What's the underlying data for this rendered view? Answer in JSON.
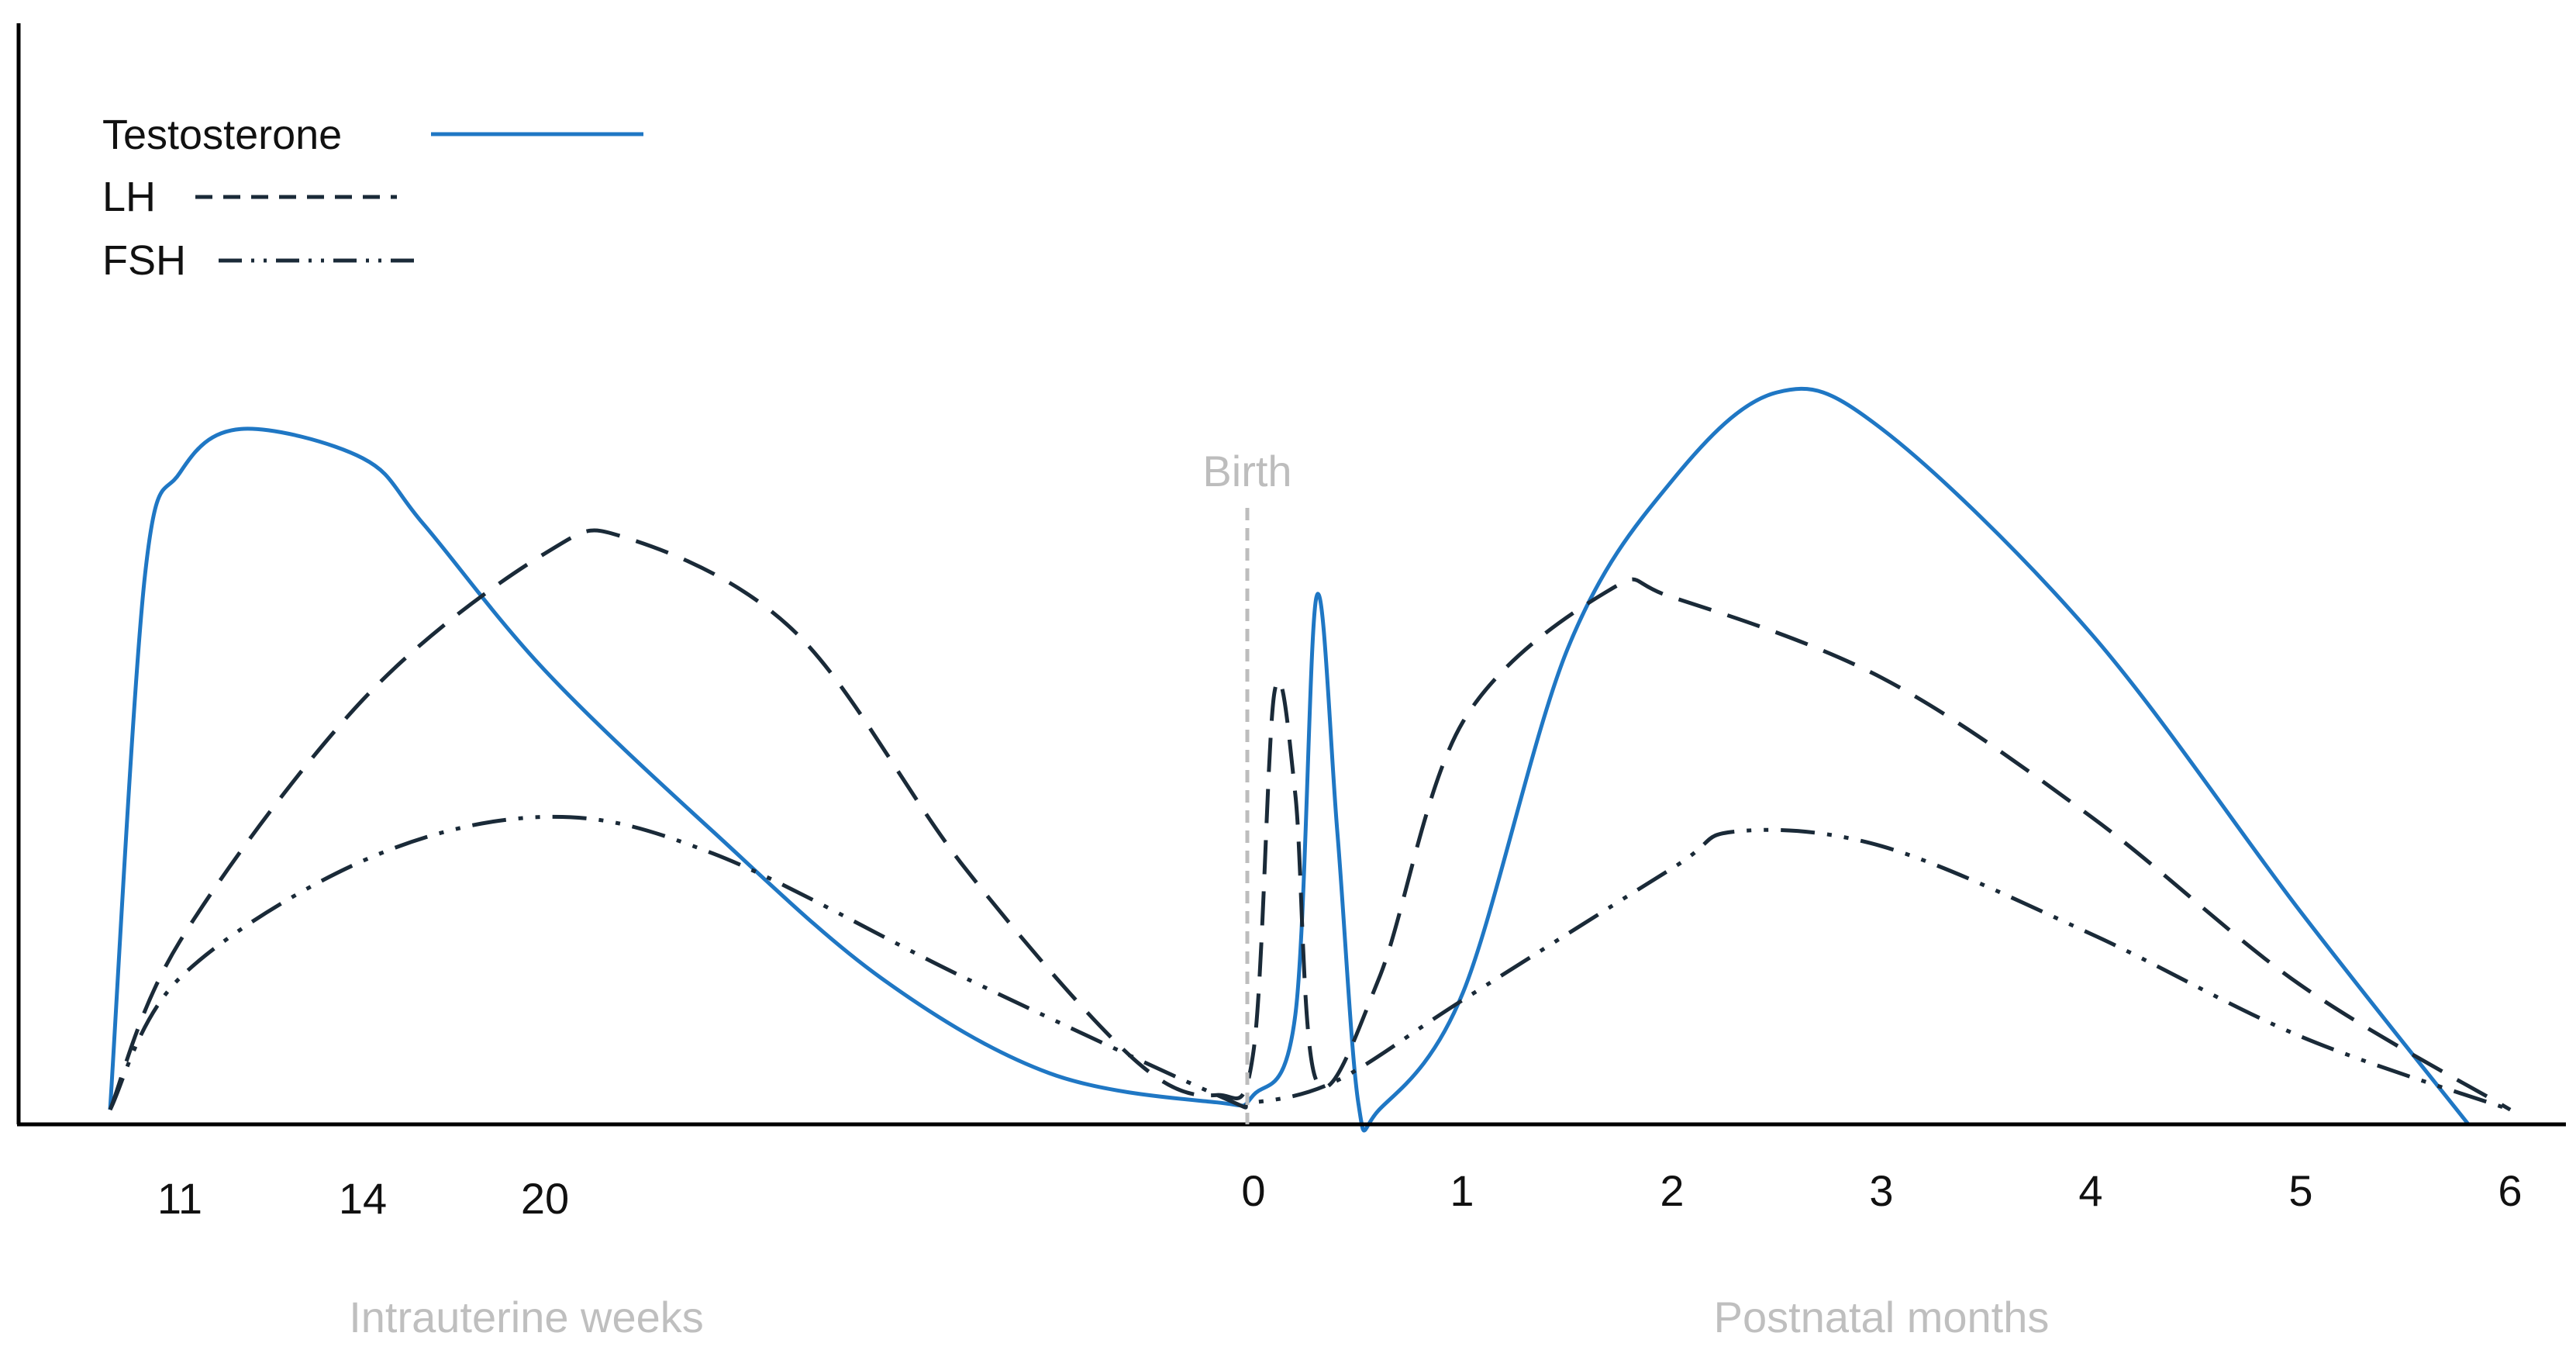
{
  "chart_data": {
    "type": "line",
    "title": "",
    "y_axis": {
      "label": "",
      "ticks": [],
      "ylim": [
        0,
        100
      ]
    },
    "x_axis": {
      "segments": [
        {
          "label": "Intrauterine weeks",
          "ticks": [
            "11",
            "14",
            "20"
          ]
        },
        {
          "label": "Postnatal months",
          "ticks": [
            "0",
            "1",
            "2",
            "3",
            "4",
            "5",
            "6"
          ]
        }
      ]
    },
    "legend": {
      "placement": "top-left",
      "entries": [
        {
          "name": "Testosterone",
          "style": "solid",
          "color": "#1f77c4"
        },
        {
          "name": "LH",
          "style": "dashed",
          "color": "#1a2a38"
        },
        {
          "name": "FSH",
          "style": "dash-dot-dot",
          "color": "#1a2a38"
        }
      ]
    },
    "annotation": {
      "text": "Birth",
      "at_x": "0"
    },
    "series": [
      {
        "name": "Testosterone",
        "color": "#1f77c4",
        "points": [
          {
            "x": "10",
            "y": 2
          },
          {
            "x": "10.5",
            "y": 75
          },
          {
            "x": "11",
            "y": 89
          },
          {
            "x": "12",
            "y": 95
          },
          {
            "x": "14",
            "y": 91
          },
          {
            "x": "16",
            "y": 82
          },
          {
            "x": "20",
            "y": 62
          },
          {
            "x": "24",
            "y": 40
          },
          {
            "x": "28",
            "y": 20
          },
          {
            "x": "32",
            "y": 7
          },
          {
            "x": "36",
            "y": 3
          },
          {
            "x": "0",
            "y": 4
          },
          {
            "x": "0.2",
            "y": 15
          },
          {
            "x": "0.3",
            "y": 72
          },
          {
            "x": "0.4",
            "y": 40
          },
          {
            "x": "0.5",
            "y": 3
          },
          {
            "x": "0.6",
            "y": 2
          },
          {
            "x": "1",
            "y": 18
          },
          {
            "x": "1.5",
            "y": 65
          },
          {
            "x": "2",
            "y": 88
          },
          {
            "x": "2.5",
            "y": 100
          },
          {
            "x": "3",
            "y": 95
          },
          {
            "x": "4",
            "y": 67
          },
          {
            "x": "5",
            "y": 29
          },
          {
            "x": "5.8",
            "y": 0
          }
        ]
      },
      {
        "name": "LH",
        "color": "#1a2a38",
        "points": [
          {
            "x": "10",
            "y": 2
          },
          {
            "x": "11",
            "y": 25
          },
          {
            "x": "14",
            "y": 58
          },
          {
            "x": "20",
            "y": 78
          },
          {
            "x": "22",
            "y": 80
          },
          {
            "x": "26",
            "y": 67
          },
          {
            "x": "30",
            "y": 35
          },
          {
            "x": "34",
            "y": 9
          },
          {
            "x": "36",
            "y": 4
          },
          {
            "x": "0",
            "y": 10
          },
          {
            "x": "0.1",
            "y": 59
          },
          {
            "x": "0.2",
            "y": 45
          },
          {
            "x": "0.3",
            "y": 6
          },
          {
            "x": "0.6",
            "y": 20
          },
          {
            "x": "1",
            "y": 55
          },
          {
            "x": "1.7",
            "y": 73
          },
          {
            "x": "2",
            "y": 72
          },
          {
            "x": "3",
            "y": 61
          },
          {
            "x": "4",
            "y": 42
          },
          {
            "x": "5",
            "y": 19
          },
          {
            "x": "6",
            "y": 2
          }
        ]
      },
      {
        "name": "FSH",
        "color": "#1a2a38",
        "points": [
          {
            "x": "10",
            "y": 2
          },
          {
            "x": "11",
            "y": 20
          },
          {
            "x": "14",
            "y": 36
          },
          {
            "x": "20",
            "y": 42
          },
          {
            "x": "24",
            "y": 37
          },
          {
            "x": "30",
            "y": 20
          },
          {
            "x": "36",
            "y": 4
          },
          {
            "x": "0",
            "y": 3
          },
          {
            "x": "0.4",
            "y": 6
          },
          {
            "x": "1",
            "y": 17
          },
          {
            "x": "2",
            "y": 35
          },
          {
            "x": "2.3",
            "y": 40
          },
          {
            "x": "3",
            "y": 38
          },
          {
            "x": "4",
            "y": 26
          },
          {
            "x": "5",
            "y": 12
          },
          {
            "x": "6",
            "y": 2
          }
        ]
      }
    ]
  }
}
